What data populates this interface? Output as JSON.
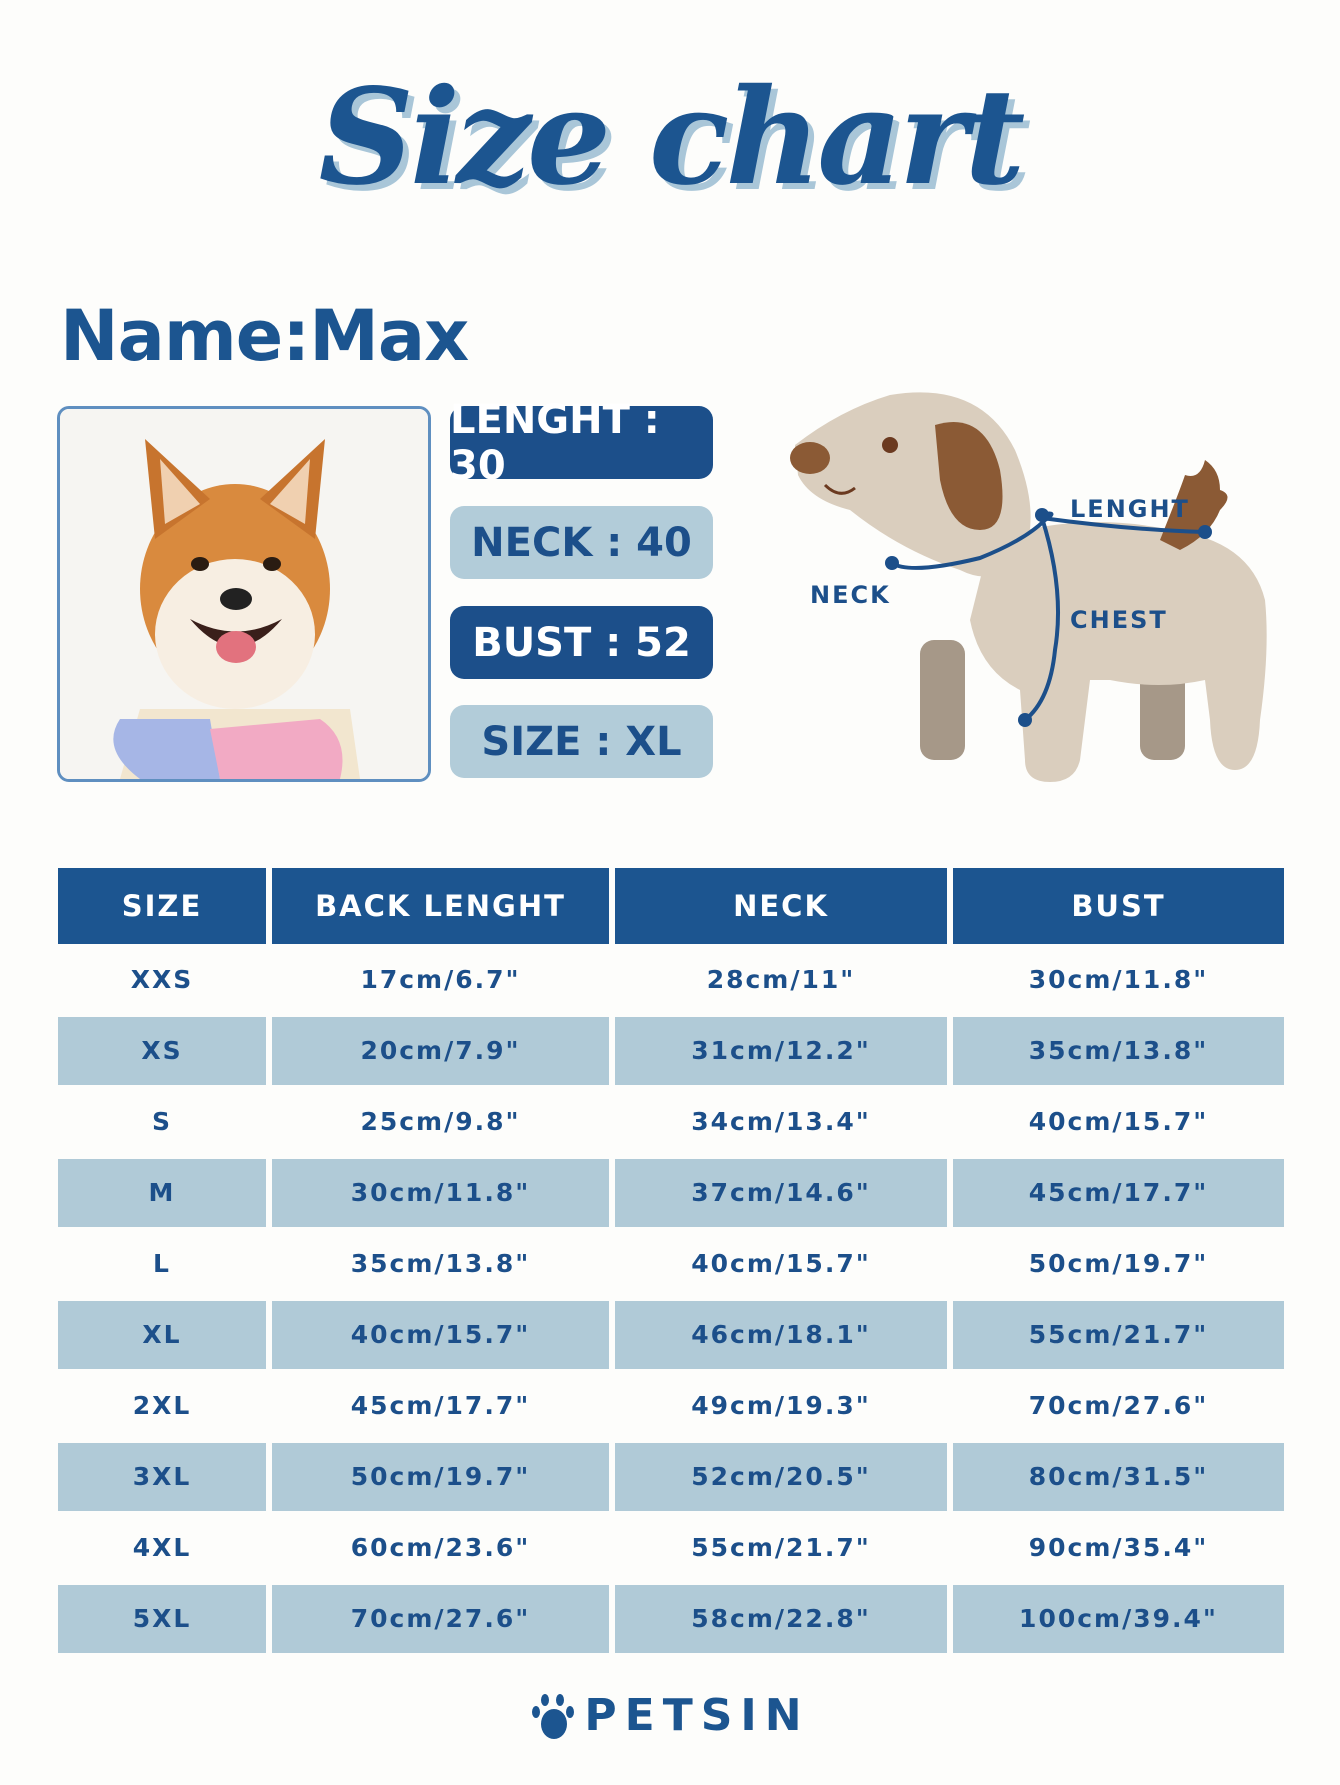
{
  "title": "Size chart",
  "name_label": "Name:Max",
  "pills": [
    {
      "label": "LENGHT : 30",
      "style": "dark"
    },
    {
      "label": "NECK : 40",
      "style": "light"
    },
    {
      "label": "BUST : 52",
      "style": "dark"
    },
    {
      "label": "SIZE : XL",
      "style": "light"
    }
  ],
  "diagram": {
    "lenght": "LENGHT",
    "neck": "NECK",
    "chest": "CHEST"
  },
  "table": {
    "headers": [
      "SIZE",
      "BACK LENGHT",
      "NECK",
      "BUST"
    ],
    "rows": [
      [
        "XXS",
        "17cm/6.7\"",
        "28cm/11\"",
        "30cm/11.8\""
      ],
      [
        "XS",
        "20cm/7.9\"",
        "31cm/12.2\"",
        "35cm/13.8\""
      ],
      [
        "S",
        "25cm/9.8\"",
        "34cm/13.4\"",
        "40cm/15.7\""
      ],
      [
        "M",
        "30cm/11.8\"",
        "37cm/14.6\"",
        "45cm/17.7\""
      ],
      [
        "L",
        "35cm/13.8\"",
        "40cm/15.7\"",
        "50cm/19.7\""
      ],
      [
        "XL",
        "40cm/15.7\"",
        "46cm/18.1\"",
        "55cm/21.7\""
      ],
      [
        "2XL",
        "45cm/17.7\"",
        "49cm/19.3\"",
        "70cm/27.6\""
      ],
      [
        "3XL",
        "50cm/19.7\"",
        "52cm/20.5\"",
        "80cm/31.5\""
      ],
      [
        "4XL",
        "60cm/23.6\"",
        "55cm/21.7\"",
        "90cm/35.4\""
      ],
      [
        "5XL",
        "70cm/27.6\"",
        "58cm/22.8\"",
        "100cm/39.4\""
      ]
    ]
  },
  "brand": {
    "name": "PETSIN",
    "icon": "paw-icon"
  },
  "colors": {
    "primary": "#1c5590",
    "light": "#b0cad7",
    "background": "#fdfdfb"
  }
}
